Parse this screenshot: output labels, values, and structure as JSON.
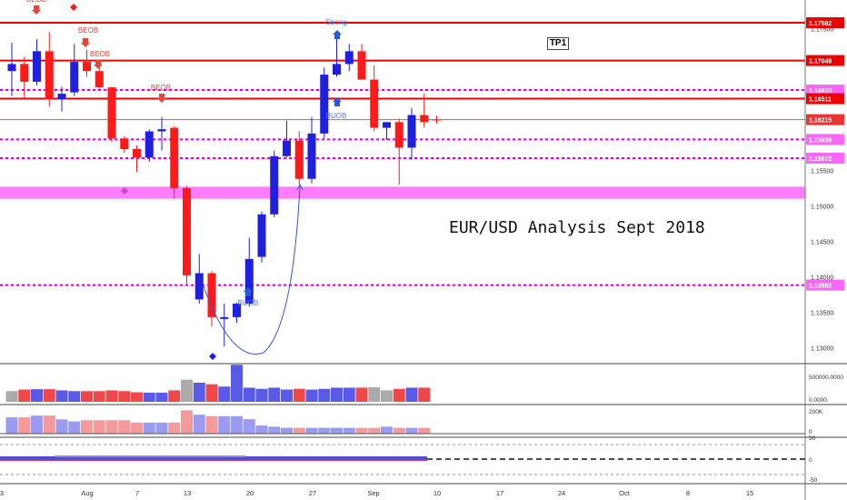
{
  "title": "EUR/USD Analysis Sept 2018",
  "tp_label": "TP1",
  "colors": {
    "bull": "#1f1fe0",
    "bear": "#ff1a1a",
    "zone": "#ff66ff",
    "level": "#ee0000",
    "dotted": "#d400d4",
    "arrow_up": "#2a5bd7",
    "arrow_dn": "#e8443a"
  },
  "chart_data": {
    "type": "candlestick",
    "ylim": [
      1.128,
      1.178
    ],
    "price_labels": [
      "1.17582",
      "1.17049",
      "1.16633",
      "1.16511",
      "1.16215",
      "1.15936",
      "1.15672",
      "1.13882"
    ],
    "y_ticks": [
      "1.17500",
      "1.15500",
      "1.15000",
      "1.14500",
      "1.14000",
      "1.13500",
      "1.13000"
    ],
    "x_ticks": [
      "3",
      "Aug",
      "7",
      "13",
      "20",
      "27",
      "Sep",
      "10",
      "17",
      "24",
      "Oct",
      "8",
      "15"
    ],
    "levels": [
      {
        "price": 1.17582,
        "style": "solid",
        "width": 2
      },
      {
        "price": 1.17049,
        "style": "solid",
        "width": 2
      },
      {
        "price": 1.16633,
        "style": "dotted",
        "width": 2
      },
      {
        "price": 1.16511,
        "style": "solid",
        "width": 2
      },
      {
        "price": 1.16215,
        "style": "thin",
        "width": 1
      },
      {
        "price": 1.15936,
        "style": "dotted",
        "width": 2
      },
      {
        "price": 1.15672,
        "style": "dotted",
        "width": 2
      },
      {
        "price": 1.13882,
        "style": "dotted",
        "width": 2
      }
    ],
    "zone": [
      1.151,
      1.1527
    ],
    "candles": [
      {
        "o": 1.169,
        "h": 1.173,
        "l": 1.1655,
        "c": 1.17
      },
      {
        "o": 1.17,
        "h": 1.171,
        "l": 1.165,
        "c": 1.1675
      },
      {
        "o": 1.1675,
        "h": 1.1735,
        "l": 1.167,
        "c": 1.1718
      },
      {
        "o": 1.1718,
        "h": 1.1745,
        "l": 1.164,
        "c": 1.165
      },
      {
        "o": 1.165,
        "h": 1.1668,
        "l": 1.1633,
        "c": 1.1658
      },
      {
        "o": 1.166,
        "h": 1.1728,
        "l": 1.1655,
        "c": 1.1703
      },
      {
        "o": 1.1703,
        "h": 1.172,
        "l": 1.1682,
        "c": 1.169
      },
      {
        "o": 1.169,
        "h": 1.1698,
        "l": 1.1662,
        "c": 1.1667
      },
      {
        "o": 1.1667,
        "h": 1.1668,
        "l": 1.159,
        "c": 1.1595
      },
      {
        "o": 1.1595,
        "h": 1.1598,
        "l": 1.1575,
        "c": 1.158
      },
      {
        "o": 1.158,
        "h": 1.1585,
        "l": 1.1548,
        "c": 1.1568
      },
      {
        "o": 1.1568,
        "h": 1.1608,
        "l": 1.1562,
        "c": 1.1605
      },
      {
        "o": 1.1605,
        "h": 1.1625,
        "l": 1.1578,
        "c": 1.1608
      },
      {
        "o": 1.161,
        "h": 1.1612,
        "l": 1.151,
        "c": 1.1525
      },
      {
        "o": 1.1525,
        "h": 1.1528,
        "l": 1.139,
        "c": 1.1402
      },
      {
        "o": 1.1368,
        "h": 1.1432,
        "l": 1.1362,
        "c": 1.1405
      },
      {
        "o": 1.1405,
        "h": 1.1408,
        "l": 1.133,
        "c": 1.1343
      },
      {
        "o": 1.1343,
        "h": 1.1362,
        "l": 1.1302,
        "c": 1.1343
      },
      {
        "o": 1.1343,
        "h": 1.1363,
        "l": 1.1335,
        "c": 1.1362
      },
      {
        "o": 1.1362,
        "h": 1.1455,
        "l": 1.1358,
        "c": 1.1425
      },
      {
        "o": 1.1428,
        "h": 1.1492,
        "l": 1.142,
        "c": 1.1488
      },
      {
        "o": 1.1488,
        "h": 1.1578,
        "l": 1.1484,
        "c": 1.157
      },
      {
        "o": 1.157,
        "h": 1.162,
        "l": 1.1568,
        "c": 1.1592
      },
      {
        "o": 1.1592,
        "h": 1.1605,
        "l": 1.153,
        "c": 1.1538
      },
      {
        "o": 1.1538,
        "h": 1.1625,
        "l": 1.1532,
        "c": 1.1602
      },
      {
        "o": 1.1602,
        "h": 1.1695,
        "l": 1.1595,
        "c": 1.1685
      },
      {
        "o": 1.1685,
        "h": 1.174,
        "l": 1.1682,
        "c": 1.17
      },
      {
        "o": 1.17,
        "h": 1.1728,
        "l": 1.169,
        "c": 1.1718
      },
      {
        "o": 1.1718,
        "h": 1.1728,
        "l": 1.1678,
        "c": 1.1678
      },
      {
        "o": 1.1678,
        "h": 1.1698,
        "l": 1.1605,
        "c": 1.161
      },
      {
        "o": 1.161,
        "h": 1.1618,
        "l": 1.1593,
        "c": 1.1618
      },
      {
        "o": 1.1618,
        "h": 1.1623,
        "l": 1.153,
        "c": 1.1582
      },
      {
        "o": 1.1582,
        "h": 1.1638,
        "l": 1.1565,
        "c": 1.1628
      },
      {
        "o": 1.1628,
        "h": 1.1658,
        "l": 1.161,
        "c": 1.1618
      }
    ],
    "volume_labels": [
      "500000.0000",
      "0.0000"
    ],
    "volume_ratio": [
      0.28,
      0.32,
      0.33,
      0.33,
      0.3,
      0.28,
      0.28,
      0.28,
      0.3,
      0.28,
      0.25,
      0.24,
      0.24,
      0.3,
      0.58,
      0.5,
      0.46,
      0.4,
      0.97,
      0.37,
      0.34,
      0.37,
      0.32,
      0.34,
      0.32,
      0.34,
      0.37,
      0.37,
      0.37,
      0.38,
      0.3,
      0.34,
      0.37,
      0.37
    ],
    "volume2_labels": [
      "200K",
      "0"
    ],
    "volume2_ratio": [
      0.56,
      0.56,
      0.62,
      0.62,
      0.49,
      0.42,
      0.46,
      0.46,
      0.46,
      0.46,
      0.38,
      0.38,
      0.38,
      0.38,
      0.8,
      0.65,
      0.6,
      0.6,
      0.6,
      0.5,
      0.28,
      0.24,
      0.2,
      0.2,
      0.2,
      0.2,
      0.2,
      0.2,
      0.2,
      0.2,
      0.24,
      0.2,
      0.2,
      0.2
    ],
    "osc_labels": [
      "50",
      "0",
      "-50"
    ]
  },
  "annotations": {
    "top_left": "BEOB",
    "beob1": "BEOB",
    "beob2": "BEOB",
    "beob3": "BEOB",
    "strong": "Strong",
    "buob1": "BUOB",
    "buob2": "BUOB"
  }
}
